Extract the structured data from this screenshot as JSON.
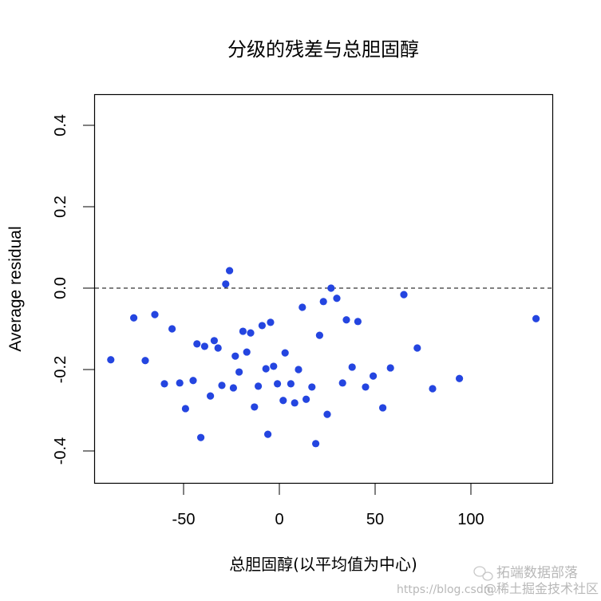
{
  "chart_data": {
    "type": "scatter",
    "title": "分级的残差与总胆固醇",
    "xlabel": "总胆固醇(以平均值为中心)",
    "ylabel": "Average residual",
    "xlim": [
      -97,
      140
    ],
    "ylim": [
      -0.48,
      0.475
    ],
    "x_ticks": [
      -50,
      0,
      50,
      100
    ],
    "x_tick_labels": [
      "-50",
      "0",
      "50",
      "100"
    ],
    "y_ticks": [
      0.4,
      0.2,
      0.0,
      -0.2,
      -0.4
    ],
    "y_tick_labels": [
      "0.4",
      "0.2",
      "0.0",
      "-0.2",
      "-0.4"
    ],
    "reference_line": {
      "y": 0.0,
      "style": "dashed",
      "color": "#000000"
    },
    "grid": false,
    "legend": null,
    "point_color": "#2445e0",
    "points": [
      {
        "x": -88,
        "y": -0.176
      },
      {
        "x": -76,
        "y": -0.073
      },
      {
        "x": -70,
        "y": -0.178
      },
      {
        "x": -65,
        "y": -0.065
      },
      {
        "x": -60,
        "y": -0.235
      },
      {
        "x": -56,
        "y": -0.1
      },
      {
        "x": -52,
        "y": -0.233
      },
      {
        "x": -49,
        "y": -0.296
      },
      {
        "x": -45,
        "y": -0.227
      },
      {
        "x": -43,
        "y": -0.137
      },
      {
        "x": -41,
        "y": -0.367
      },
      {
        "x": -39,
        "y": -0.143
      },
      {
        "x": -36,
        "y": -0.265
      },
      {
        "x": -34,
        "y": -0.129
      },
      {
        "x": -32,
        "y": -0.147
      },
      {
        "x": -30,
        "y": -0.239
      },
      {
        "x": -28,
        "y": 0.01
      },
      {
        "x": -26,
        "y": 0.043
      },
      {
        "x": -24,
        "y": -0.245
      },
      {
        "x": -23,
        "y": -0.167
      },
      {
        "x": -21,
        "y": -0.206
      },
      {
        "x": -19,
        "y": -0.106
      },
      {
        "x": -17,
        "y": -0.157
      },
      {
        "x": -15,
        "y": -0.11
      },
      {
        "x": -13,
        "y": -0.292
      },
      {
        "x": -11,
        "y": -0.241
      },
      {
        "x": -9,
        "y": -0.092
      },
      {
        "x": -7,
        "y": -0.198
      },
      {
        "x": -6,
        "y": -0.359
      },
      {
        "x": -4.6,
        "y": -0.084
      },
      {
        "x": -3,
        "y": -0.192
      },
      {
        "x": -1,
        "y": -0.235
      },
      {
        "x": 2,
        "y": -0.276
      },
      {
        "x": 3,
        "y": -0.159
      },
      {
        "x": 6,
        "y": -0.235
      },
      {
        "x": 8,
        "y": -0.282
      },
      {
        "x": 10,
        "y": -0.2
      },
      {
        "x": 12,
        "y": -0.047
      },
      {
        "x": 14,
        "y": -0.273
      },
      {
        "x": 17,
        "y": -0.243
      },
      {
        "x": 19,
        "y": -0.382
      },
      {
        "x": 21,
        "y": -0.116
      },
      {
        "x": 23,
        "y": -0.033
      },
      {
        "x": 25,
        "y": -0.31
      },
      {
        "x": 27,
        "y": 0.0
      },
      {
        "x": 30,
        "y": -0.025
      },
      {
        "x": 33,
        "y": -0.233
      },
      {
        "x": 35,
        "y": -0.078
      },
      {
        "x": 38,
        "y": -0.194
      },
      {
        "x": 41,
        "y": -0.082
      },
      {
        "x": 45,
        "y": -0.243
      },
      {
        "x": 49,
        "y": -0.216
      },
      {
        "x": 54,
        "y": -0.294
      },
      {
        "x": 58,
        "y": -0.196
      },
      {
        "x": 65,
        "y": -0.016
      },
      {
        "x": 72,
        "y": -0.147
      },
      {
        "x": 80,
        "y": -0.247
      },
      {
        "x": 94,
        "y": -0.222
      },
      {
        "x": 134,
        "y": -0.075
      }
    ]
  },
  "watermark": {
    "brand": "拓端数据部落",
    "url": "https://blog.csdn...",
    "community": "@稀土掘金技术社区"
  }
}
